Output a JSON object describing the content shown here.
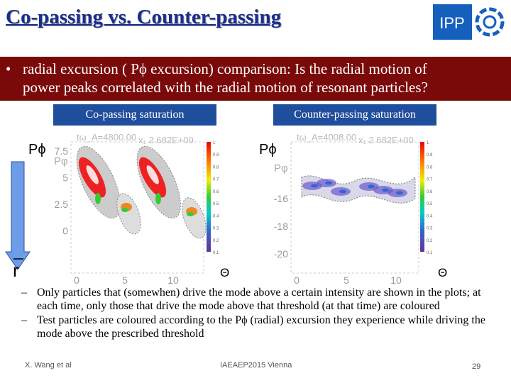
{
  "header": {
    "title": "Co-passing vs. Counter-passing",
    "logo_text": "IPP"
  },
  "banner": {
    "bullet": "•",
    "lines": [
      "radial excursion ( Pϕ excursion) comparison: Is the radial motion of",
      "power peaks correlated with the radial motion of resonant particles?"
    ]
  },
  "panels": [
    {
      "label": "Co-passing saturation",
      "p_label": "Pϕ",
      "theta": "Θ",
      "plot_title": "tω_A=4800.00",
      "plot_subtitle": "x₁ 2.682E+00",
      "y_axis_label": "Pφ",
      "yticks": [
        "7.5",
        "5",
        "2.5",
        "0"
      ],
      "xticks": [
        "0",
        "5",
        "10"
      ],
      "colorbar_ticks": [
        "1",
        "0.9",
        "0.8",
        "0.7",
        "0.6",
        "0.5",
        "0.4",
        "0.3",
        "0.2",
        "0.1"
      ]
    },
    {
      "label": "Counter-passing saturation",
      "p_label": "Pϕ",
      "theta": "Θ",
      "plot_title": "tω_A=4008.00",
      "plot_subtitle": "x₁ 2.682E+00",
      "y_axis_label": "Pφ",
      "yticks": [
        "-16",
        "-18",
        "-20"
      ],
      "xticks": [
        "0",
        "5",
        "10"
      ],
      "colorbar_ticks": [
        "1",
        "0.9",
        "0.8",
        "0.7",
        "0.6",
        "0.5",
        "0.4",
        "0.3",
        "0.2",
        "0.1"
      ]
    }
  ],
  "arrow_label": "r",
  "bullets": [
    {
      "marker": "–",
      "text": "Only particles that (somewhen) drive the mode above a certain intensity are shown in the plots; at each time, only those that drive the mode above that threshold (at that time) are coloured"
    },
    {
      "marker": "–",
      "text": "Test particles are coloured according to the Pϕ (radial) excursion they experience while driving the mode above the prescribed threshold"
    }
  ],
  "footer": {
    "author": "X. Wang et al",
    "conference": "IAEAEP2015 Vienna",
    "page": "29"
  }
}
